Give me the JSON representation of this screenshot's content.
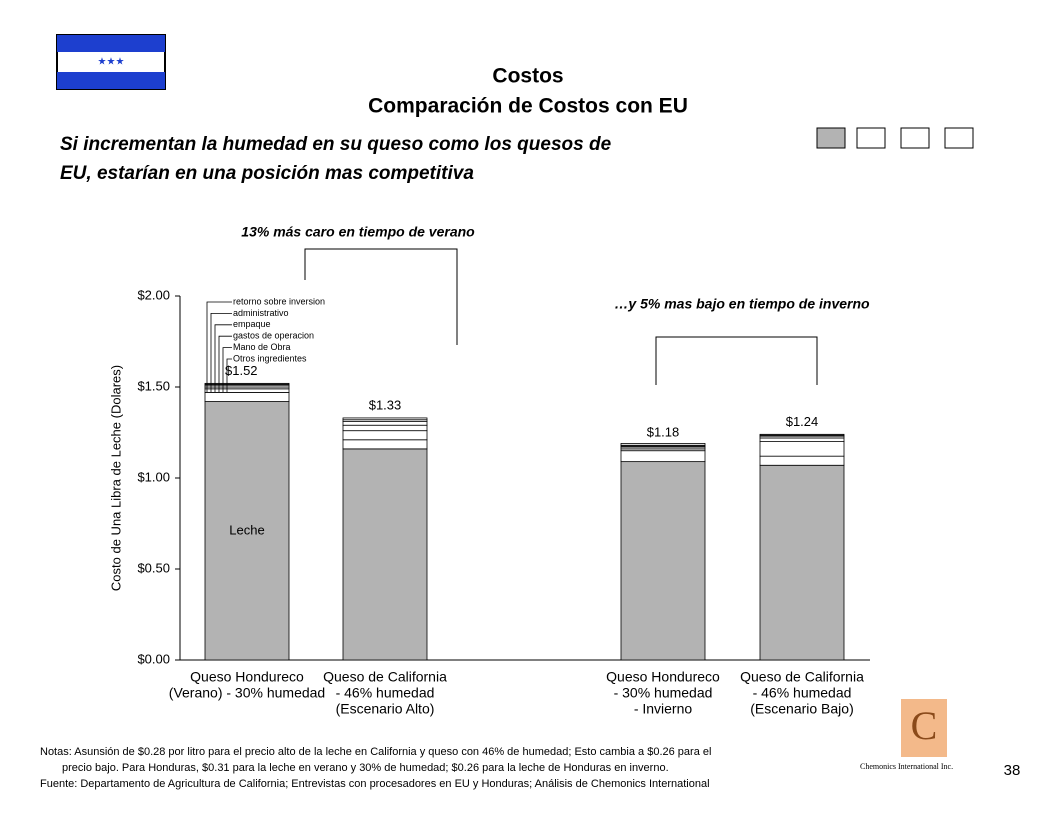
{
  "header": {
    "title": "Costos",
    "subtitle": "Comparación de Costos con EU",
    "headline": [
      "Si incrementan la humedad en su queso como los quesos de",
      "EU, estarían en una posición mas competitiva"
    ]
  },
  "chart_data": {
    "type": "stacked_bar",
    "y_axis_label": "Costo de Una Libra de Leche (Dolares)",
    "categories": [
      [
        "Queso Hondureco",
        "(Verano) - 30% humedad"
      ],
      [
        "Queso de California",
        "- 46% humedad",
        "(Escenario Alto)"
      ],
      [
        "Queso Hondureco",
        "- 30% humedad",
        "- Invierno"
      ],
      [
        "Queso de California",
        "- 46% humedad",
        "(Escenario Bajo)"
      ]
    ],
    "series": [
      {
        "name": "Leche",
        "color": "#b3b3b3",
        "values": [
          1.42,
          1.16,
          1.09,
          1.07
        ]
      },
      {
        "name": "Otros ingredientes",
        "color": "#ffffff",
        "values": [
          0.05,
          0.05,
          0.06,
          0.05
        ]
      },
      {
        "name": "Mano de Obra",
        "color": "#ffffff",
        "values": [
          0.02,
          0.05,
          0.01,
          0.08
        ]
      },
      {
        "name": "gastos de operacion",
        "color": "#ffffff",
        "values": [
          0.01,
          0.03,
          0.01,
          0.02
        ]
      },
      {
        "name": "empaque",
        "color": "#ffffff",
        "values": [
          0.01,
          0.02,
          0.005,
          0.01
        ]
      },
      {
        "name": "administrativo",
        "color": "#ffffff",
        "values": [
          0.005,
          0.01,
          0.005,
          0.005
        ]
      },
      {
        "name": "retorno sobre inversion",
        "color": "#ffffff",
        "values": [
          0.005,
          0.01,
          0.01,
          0.005
        ]
      }
    ],
    "totals": {
      "values": [
        1.52,
        1.33,
        1.18,
        1.24
      ],
      "value_labels": [
        "$1.52",
        "$1.33",
        "$1.18",
        "$1.24"
      ]
    },
    "ylim": [
      0,
      2
    ],
    "yticks": [
      {
        "value": 0,
        "label": "$0.00"
      },
      {
        "value": 0.5,
        "label": "$0.50"
      },
      {
        "value": 1,
        "label": "$1.00"
      },
      {
        "value": 1.5,
        "label": "$1.50"
      },
      {
        "value": 2,
        "label": "$2.00"
      }
    ],
    "annotations": [
      "13% más caro en tiempo de verano",
      "…y 5% mas bajo en tiempo de inverno"
    ]
  },
  "notes": [
    "Notas: Asunsión de $0.28 por litro para el precio alto de la leche en California y queso con 46% de humedad; Esto cambia a $0.26 para el",
    "precio bajo.  Para Honduras, $0.31 para la leche en verano y 30% de humedad; $0.26 para la leche de Honduras en inverno.",
    "Fuente: Departamento de Agricultura de California; Entrevistas con procesadores en EU y Honduras; Análisis de Chemonics International"
  ],
  "footer": {
    "page": "38",
    "company": "Chemonics International Inc."
  }
}
